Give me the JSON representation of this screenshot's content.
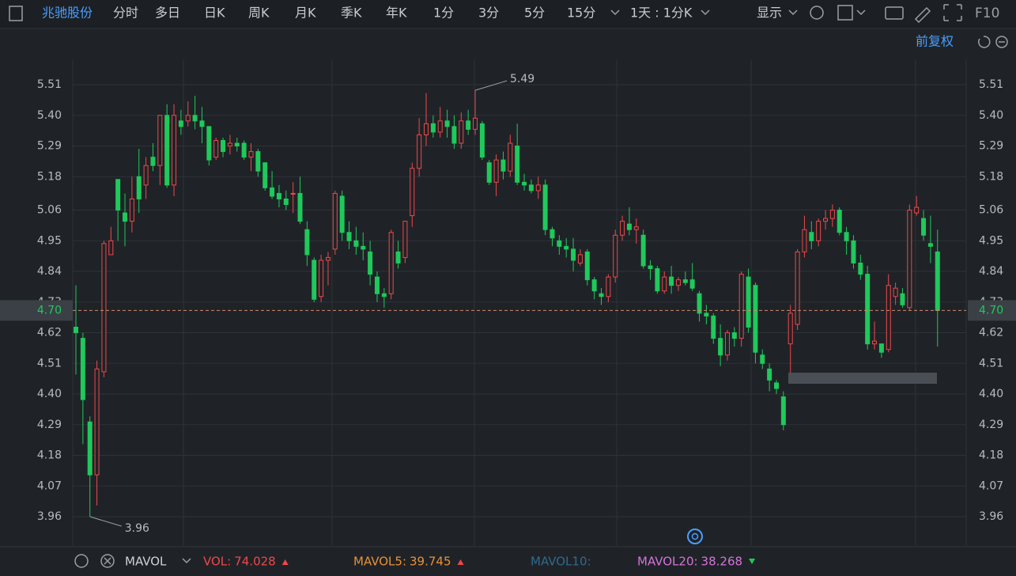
{
  "toolbar": {
    "stock": "兆驰股份",
    "tabs": [
      "分时",
      "多日",
      "日K",
      "周K",
      "月K",
      "季K",
      "年K",
      "1分",
      "3分",
      "5分",
      "15分"
    ],
    "active": 2,
    "period": "1天 : 1分K",
    "display": "显示",
    "f10": "F10"
  },
  "adjust": "前复权",
  "chart_data": {
    "type": "candlestick",
    "open": [
      4.64,
      4.6,
      4.3,
      4.11,
      4.48,
      4.9,
      5.17,
      5.05,
      5.02,
      5.18,
      5.15,
      5.25,
      5.22,
      5.4,
      5.15,
      5.38,
      5.38,
      5.4,
      5.38,
      5.36,
      5.25,
      5.31,
      5.29,
      5.3,
      5.3,
      5.25,
      5.27,
      5.23,
      5.14,
      5.12,
      5.1,
      5.12,
      5.12,
      4.99,
      4.88,
      4.75,
      4.88,
      4.92,
      5.11,
      4.98,
      4.95,
      4.93,
      4.91,
      4.82,
      4.76,
      4.76,
      4.91,
      4.89,
      5.04,
      5.21,
      5.33,
      5.37,
      5.34,
      5.38,
      5.36,
      5.3,
      5.38,
      5.35,
      5.37,
      5.23,
      5.16,
      5.24,
      5.2,
      5.29,
      5.16,
      5.15,
      5.13,
      5.15,
      4.99,
      4.95,
      4.93,
      4.92,
      4.87,
      4.91,
      4.81,
      4.76,
      4.75,
      4.82,
      4.97,
      5.01,
      4.99,
      4.97,
      4.86,
      4.85,
      4.77,
      4.82,
      4.79,
      4.81,
      4.81,
      4.76,
      4.69,
      4.68,
      4.6,
      4.54,
      4.62,
      4.6,
      4.82,
      4.79,
      4.54,
      4.49,
      4.44,
      4.39,
      4.58,
      4.65,
      4.91,
      4.98,
      4.95,
      5.02,
      5.03,
      5.06,
      4.98,
      4.95,
      4.87,
      4.83,
      4.58,
      4.58,
      4.56,
      4.75,
      4.76,
      4.71,
      5.05,
      5.03,
      4.94,
      4.91
    ],
    "high": [
      4.79,
      4.62,
      4.32,
      4.52,
      4.95,
      5.0,
      5.17,
      5.12,
      5.18,
      5.28,
      5.25,
      5.3,
      5.4,
      5.44,
      5.44,
      5.42,
      5.45,
      5.47,
      5.43,
      5.36,
      5.32,
      5.32,
      5.33,
      5.32,
      5.31,
      5.3,
      5.28,
      5.23,
      5.2,
      5.15,
      5.13,
      5.16,
      5.18,
      5.02,
      4.89,
      4.9,
      4.91,
      5.13,
      5.13,
      5.02,
      5.0,
      4.98,
      4.95,
      4.84,
      4.78,
      4.99,
      4.95,
      5.02,
      5.23,
      5.39,
      5.48,
      5.4,
      5.43,
      5.42,
      5.4,
      5.41,
      5.42,
      5.49,
      5.38,
      5.24,
      5.26,
      5.27,
      5.33,
      5.37,
      5.19,
      5.17,
      5.18,
      5.17,
      5.0,
      4.97,
      4.96,
      4.96,
      4.92,
      4.92,
      4.82,
      4.78,
      4.83,
      4.99,
      5.04,
      5.07,
      5.03,
      4.99,
      4.88,
      4.86,
      4.84,
      4.86,
      4.82,
      4.84,
      4.87,
      4.77,
      4.72,
      4.69,
      4.65,
      4.63,
      4.64,
      4.84,
      4.85,
      4.8,
      4.56,
      4.51,
      4.45,
      4.41,
      4.72,
      4.92,
      5.04,
      5.02,
      5.03,
      5.06,
      5.08,
      5.07,
      5.0,
      4.97,
      4.9,
      4.86,
      4.66,
      4.58,
      4.83,
      4.8,
      4.78,
      5.08,
      5.11,
      5.06,
      5.04,
      4.99
    ],
    "low": [
      4.47,
      4.22,
      3.96,
      4.0,
      4.46,
      4.9,
      4.95,
      4.93,
      4.98,
      5.05,
      5.1,
      5.2,
      5.15,
      5.14,
      5.11,
      5.33,
      5.36,
      5.35,
      5.3,
      5.22,
      5.24,
      5.25,
      5.26,
      5.27,
      5.24,
      5.2,
      5.18,
      5.13,
      5.1,
      5.07,
      5.06,
      5.05,
      5.01,
      4.86,
      4.73,
      4.73,
      4.79,
      4.9,
      4.95,
      4.92,
      4.9,
      4.88,
      4.79,
      4.73,
      4.71,
      4.74,
      4.85,
      4.87,
      5.0,
      5.18,
      5.29,
      5.32,
      5.32,
      5.32,
      5.28,
      5.28,
      5.33,
      5.33,
      5.24,
      5.15,
      5.11,
      5.17,
      5.18,
      5.15,
      5.13,
      5.12,
      5.1,
      4.97,
      4.93,
      4.9,
      4.89,
      4.84,
      4.86,
      4.79,
      4.74,
      4.72,
      4.73,
      4.8,
      4.95,
      4.97,
      4.94,
      4.85,
      4.81,
      4.76,
      4.76,
      4.76,
      4.77,
      4.79,
      4.77,
      4.66,
      4.65,
      4.58,
      4.5,
      4.52,
      4.57,
      4.57,
      4.62,
      4.51,
      4.49,
      4.41,
      4.4,
      4.27,
      4.45,
      4.63,
      4.89,
      4.92,
      4.93,
      4.99,
      5.0,
      4.97,
      4.9,
      4.85,
      4.81,
      4.56,
      4.56,
      4.53,
      4.55,
      4.72,
      4.71,
      4.7,
      5.04,
      4.95,
      4.87,
      4.57
    ],
    "close": [
      4.62,
      4.38,
      4.11,
      4.49,
      4.94,
      4.95,
      5.06,
      5.02,
      5.1,
      5.1,
      5.22,
      5.22,
      5.4,
      5.15,
      5.4,
      5.36,
      5.4,
      5.38,
      5.36,
      5.24,
      5.31,
      5.27,
      5.3,
      5.29,
      5.25,
      5.27,
      5.2,
      5.14,
      5.11,
      5.1,
      5.08,
      5.12,
      5.02,
      4.9,
      4.74,
      4.88,
      4.89,
      5.12,
      4.98,
      4.95,
      4.93,
      4.92,
      4.83,
      4.76,
      4.75,
      4.98,
      4.87,
      5.02,
      5.21,
      5.33,
      5.37,
      5.34,
      5.38,
      5.36,
      5.3,
      5.38,
      5.35,
      5.39,
      5.25,
      5.16,
      5.24,
      5.2,
      5.3,
      5.16,
      5.15,
      5.13,
      5.15,
      4.99,
      4.96,
      4.93,
      4.92,
      4.88,
      4.9,
      4.81,
      4.77,
      4.75,
      4.82,
      4.97,
      5.02,
      4.99,
      5.0,
      4.86,
      4.85,
      4.77,
      4.82,
      4.79,
      4.81,
      4.8,
      4.78,
      4.69,
      4.68,
      4.6,
      4.54,
      4.62,
      4.6,
      4.83,
      4.64,
      4.55,
      4.51,
      4.45,
      4.42,
      4.29,
      4.69,
      4.91,
      4.99,
      4.95,
      5.02,
      5.03,
      5.06,
      4.98,
      4.95,
      4.87,
      4.83,
      4.58,
      4.59,
      4.55,
      4.79,
      4.78,
      4.72,
      5.06,
      5.07,
      4.97,
      4.93,
      4.7
    ],
    "up_color": "#f0474b",
    "down_color": "#1fc95b",
    "ylim": [
      3.855,
      5.601
    ],
    "yticks": [
      3.96,
      4.07,
      4.18,
      4.29,
      {
        "value": 4.4,
        "label": "4.40"
      },
      4.51,
      4.62,
      4.73,
      4.84,
      4.95,
      5.06,
      5.18,
      5.29,
      {
        "value": 5.4,
        "label": "5.40"
      },
      5.51
    ],
    "grid": true,
    "last_price": {
      "value": 4.7,
      "label": "4.70"
    },
    "high_annotation": 5.49,
    "low_annotation": 3.96
  },
  "indicator": {
    "name": "MAVOL",
    "items": [
      {
        "label": "VOL:",
        "value": 74.028,
        "color": "#f0474b",
        "trend": "up"
      },
      {
        "label": "MAVOL5:",
        "value": 39.745,
        "color": "#e8913a",
        "trend": "up"
      },
      {
        "label": "MAVOL10:",
        "color": "#2f6a8e"
      },
      {
        "label": "MAVOL20:",
        "value": 38.268,
        "color": "#d672da",
        "trend": "down"
      }
    ]
  }
}
